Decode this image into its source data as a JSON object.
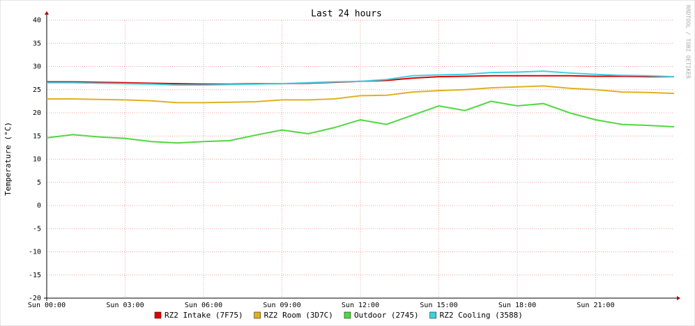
{
  "chart_data": {
    "type": "line",
    "title": "Last 24 hours",
    "y_label": "Temperature (°C)",
    "watermark": "RRDTOOL / TOBI OETIKER",
    "x": [
      0,
      1,
      2,
      3,
      4,
      5,
      6,
      7,
      8,
      9,
      10,
      11,
      12,
      13,
      14,
      15,
      16,
      17,
      18,
      19,
      20,
      21,
      22,
      23,
      24
    ],
    "xlim": [
      0,
      24
    ],
    "xticks": [
      {
        "value": 0,
        "label": "Sun 00:00"
      },
      {
        "value": 3,
        "label": "Sun 03:00"
      },
      {
        "value": 6,
        "label": "Sun 06:00"
      },
      {
        "value": 9,
        "label": "Sun 09:00"
      },
      {
        "value": 12,
        "label": "Sun 12:00"
      },
      {
        "value": 15,
        "label": "Sun 15:00"
      },
      {
        "value": 18,
        "label": "Sun 18:00"
      },
      {
        "value": 21,
        "label": "Sun 21:00"
      }
    ],
    "ylim": [
      -20,
      40
    ],
    "yticks": [
      -20,
      -15,
      -10,
      -5,
      0,
      5,
      10,
      15,
      20,
      25,
      30,
      35,
      40
    ],
    "grid": true,
    "series": [
      {
        "name": "RZ2 Intake (7F75)",
        "color": "#e00000",
        "values": [
          26.7,
          26.7,
          26.6,
          26.5,
          26.4,
          26.3,
          26.2,
          26.2,
          26.3,
          26.3,
          26.4,
          26.6,
          26.8,
          27.0,
          27.5,
          27.8,
          27.9,
          28.0,
          28.0,
          28.0,
          28.0,
          27.9,
          27.9,
          27.8,
          27.8
        ]
      },
      {
        "name": "RZ2 Room (3D7C)",
        "color": "#e0b020",
        "values": [
          23.0,
          23.0,
          22.9,
          22.8,
          22.6,
          22.2,
          22.2,
          22.3,
          22.4,
          22.8,
          22.8,
          23.0,
          23.7,
          23.8,
          24.5,
          24.8,
          25.0,
          25.4,
          25.6,
          25.8,
          25.3,
          25.0,
          24.5,
          24.4,
          24.2
        ]
      },
      {
        "name": "Outdoor (2745)",
        "color": "#50d840",
        "values": [
          14.6,
          15.3,
          14.8,
          14.5,
          13.8,
          13.5,
          13.8,
          14.0,
          15.2,
          16.3,
          15.5,
          16.8,
          18.5,
          17.5,
          19.5,
          21.5,
          20.5,
          22.5,
          21.5,
          22.0,
          20.0,
          18.5,
          17.5,
          17.3,
          17.0
        ]
      },
      {
        "name": "RZ2 Cooling (3588)",
        "color": "#40d0e0",
        "values": [
          26.5,
          26.5,
          26.4,
          26.3,
          26.2,
          26.0,
          26.0,
          26.1,
          26.2,
          26.3,
          26.5,
          26.7,
          26.8,
          27.2,
          28.0,
          28.2,
          28.3,
          28.7,
          28.8,
          29.0,
          28.6,
          28.3,
          28.1,
          28.0,
          27.8
        ]
      }
    ]
  }
}
